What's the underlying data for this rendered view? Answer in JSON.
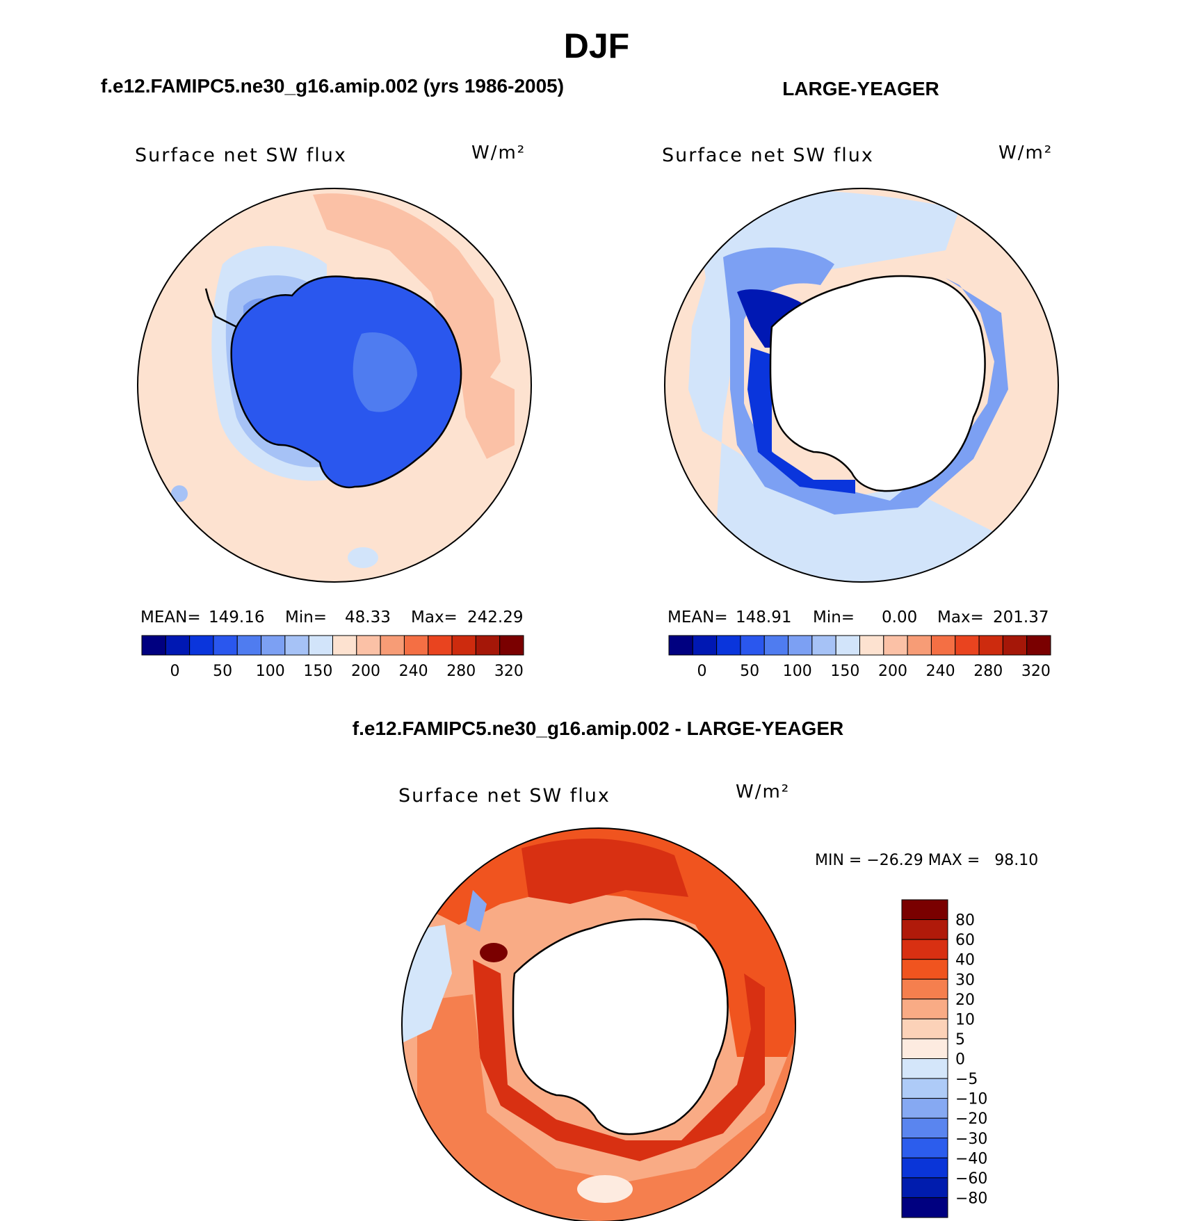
{
  "figure": {
    "title": "DJF",
    "panel_left_header": "f.e12.FAMIPC5.ne30_g16.amip.002 (yrs 1986-2005)",
    "panel_right_header": "LARGE-YEAGER",
    "diff_header": "f.e12.FAMIPC5.ne30_g16.amip.002 - LARGE-YEAGER"
  },
  "chart_data": [
    {
      "type": "map",
      "projection": "south polar stereographic",
      "title": "Surface net SW flux",
      "units": "W/m²",
      "stats": {
        "MEAN": "149.16",
        "Min": "48.33",
        "Max": "242.29"
      },
      "stats_text": {
        "mean_label": "MEAN=",
        "mean": "149.16",
        "min_label": "Min=",
        "min": "48.33",
        "max_label": "Max=",
        "max": "242.29"
      },
      "colorbar_ticks": [
        "0",
        "50",
        "100",
        "150",
        "200",
        "240",
        "280",
        "320"
      ],
      "colorbar_colors": [
        "#000080",
        "#0018b3",
        "#0a35dc",
        "#2a57ee",
        "#4f7cf0",
        "#7ca0f3",
        "#a6c2f6",
        "#d2e4fa",
        "#fde2d0",
        "#fbc1a6",
        "#f79c76",
        "#f46f44",
        "#e9441f",
        "#cd2b0e",
        "#a51708",
        "#7a0000"
      ]
    },
    {
      "type": "map",
      "projection": "south polar stereographic",
      "title": "Surface net SW flux",
      "units": "W/m²",
      "stats": {
        "MEAN": "148.91",
        "Min": "0.00",
        "Max": "201.37"
      },
      "stats_text": {
        "mean_label": "MEAN=",
        "mean": "148.91",
        "min_label": "Min=",
        "min": "0.00",
        "max_label": "Max=",
        "max": "201.37"
      },
      "colorbar_ticks": [
        "0",
        "50",
        "100",
        "150",
        "200",
        "240",
        "280",
        "320"
      ],
      "colorbar_colors": [
        "#000080",
        "#0018b3",
        "#0a35dc",
        "#2a57ee",
        "#4f7cf0",
        "#7ca0f3",
        "#a6c2f6",
        "#d2e4fa",
        "#fde2d0",
        "#fbc1a6",
        "#f79c76",
        "#f46f44",
        "#e9441f",
        "#cd2b0e",
        "#a51708",
        "#7a0000"
      ]
    },
    {
      "type": "map",
      "projection": "south polar stereographic",
      "title": "Surface net SW flux",
      "units": "W/m²",
      "stats": {
        "MIN": "-26.29",
        "MAX": "98.10"
      },
      "stats_line": "MIN = −26.29 MAX =   98.10",
      "colorbar_ticks": [
        "80",
        "60",
        "40",
        "30",
        "20",
        "10",
        "5",
        "0",
        "−5",
        "−10",
        "−20",
        "−30",
        "−40",
        "−60",
        "−80"
      ],
      "colorbar_colors": [
        "#7a0000",
        "#b01a0a",
        "#d83012",
        "#f0541f",
        "#f57f4e",
        "#f9ab85",
        "#fcd2b8",
        "#fdebe0",
        "#d4e6fa",
        "#aecbf7",
        "#86a9f2",
        "#5a85ef",
        "#2c5ded",
        "#0a35d8",
        "#001cae",
        "#000080"
      ]
    }
  ]
}
